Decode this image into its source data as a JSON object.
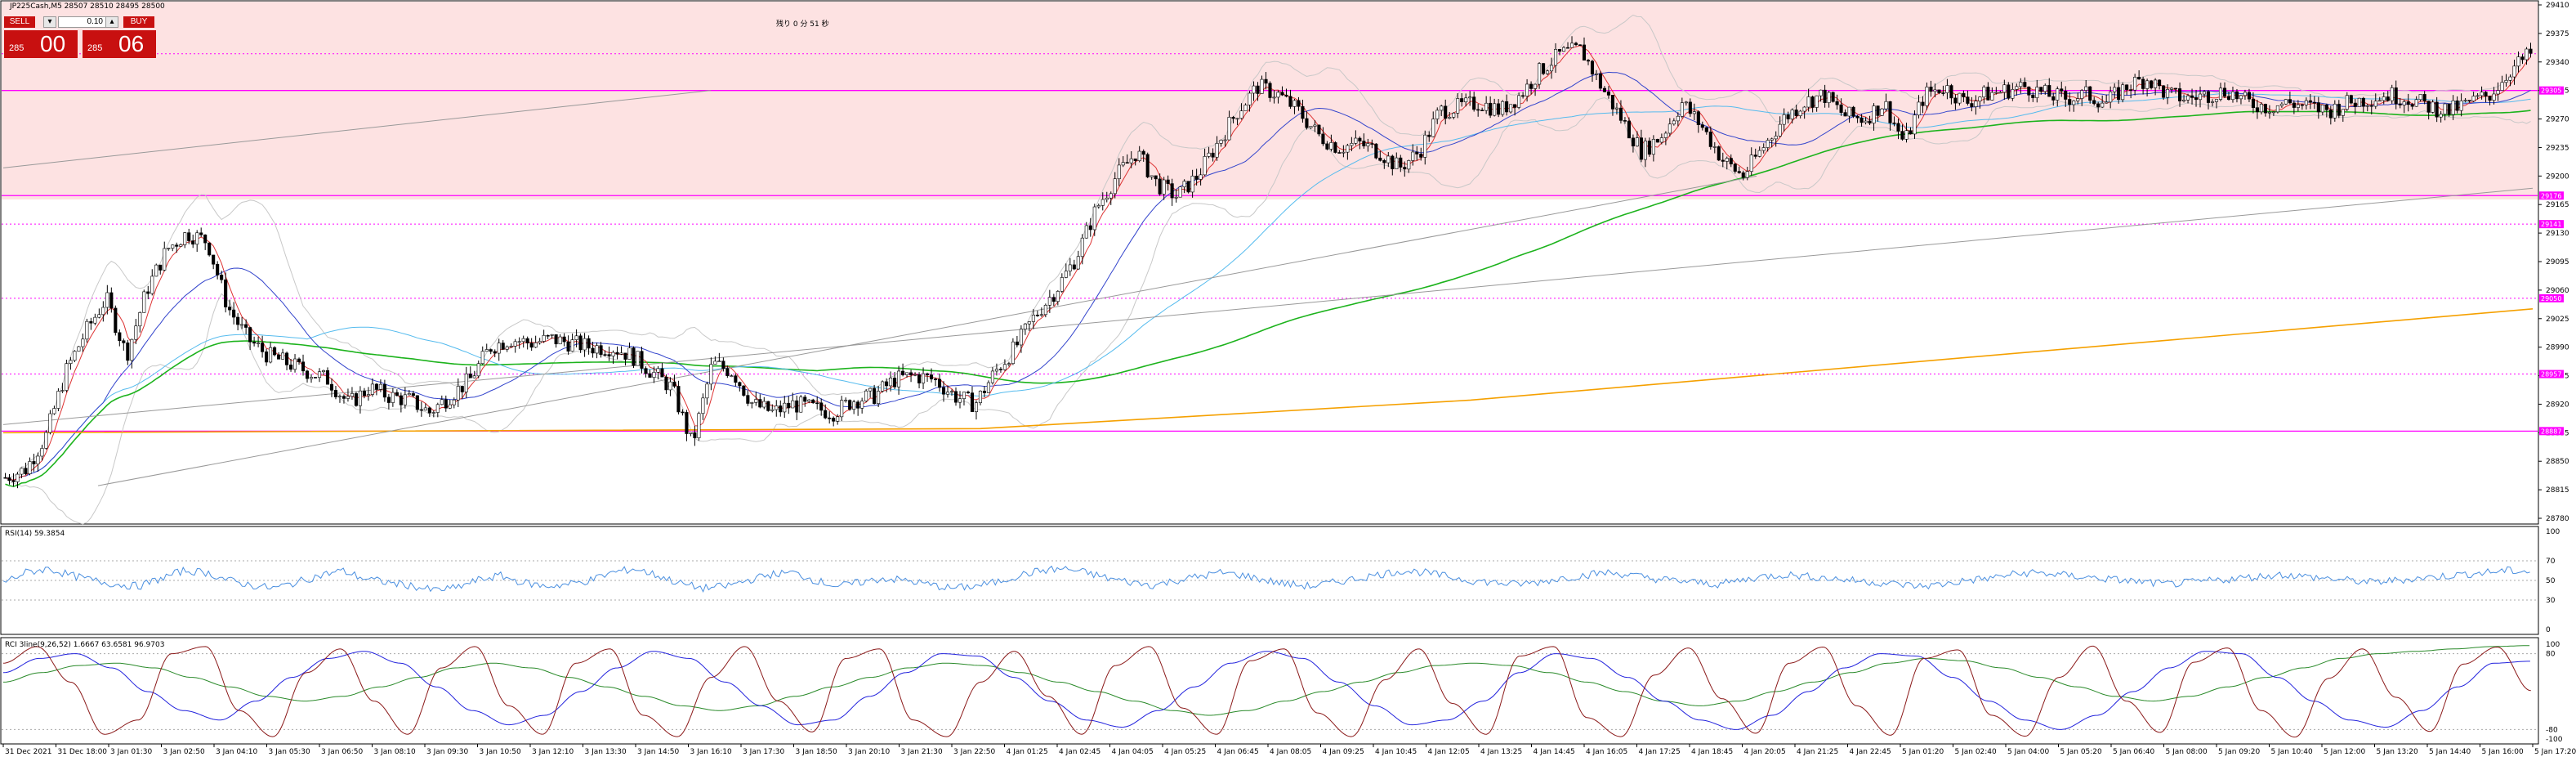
{
  "header": {
    "symbol_line": "JP225Cash,M5  28507 28510 28495 28500",
    "timer_text": "残り 0 分 51 秒"
  },
  "trade_panel": {
    "sell_label": "SELL",
    "buy_label": "BUY",
    "lot_value": "0.10",
    "sell_price_small": "285",
    "sell_price_big": "00",
    "buy_price_small": "285",
    "buy_price_big": "06"
  },
  "indicators": {
    "rsi_label": "RSI(14) 59.3854",
    "rci_label": "RCI 3line(9,26,52) 1.6667 63.6581 96.9703"
  },
  "colors": {
    "bg_upper_zone": "#fde2e2",
    "magenta_line": "#ff00ff",
    "orange_ma": "#f5a000",
    "green_ma": "#1db31d",
    "gray_trend": "#999999",
    "blue_ma": "#3344cc",
    "lightblue_ma": "#55bbee",
    "red_ma": "#dd3333",
    "rsi_line": "#4a8fe0",
    "rci_short": "#8b1a1a",
    "rci_mid": "#2222dd",
    "rci_long": "#2a8a2a",
    "price_tag": "#ff00ff"
  },
  "chart_data": [
    {
      "type": "candlestick",
      "title": "JP225Cash,M5",
      "ylim": [
        28780,
        29410
      ],
      "y_ticks": [
        "29410",
        "29375",
        "29340",
        "29305",
        "29270",
        "29235",
        "29200",
        "29165",
        "29130",
        "29095",
        "29060",
        "29025",
        "28990",
        "28955",
        "28920",
        "28885",
        "28850",
        "28815",
        "28780"
      ],
      "horizontal_levels": [
        {
          "value": 29305,
          "label": "29305",
          "style": "solid"
        },
        {
          "value": 29176,
          "label": "29176",
          "style": "solid"
        },
        {
          "value": 29141,
          "label": "29141",
          "style": "dotted"
        },
        {
          "value": 29050,
          "label": "29050",
          "style": "dotted"
        },
        {
          "value": 28957,
          "label": "28957",
          "style": "dotted"
        },
        {
          "value": 28887,
          "label": "28887",
          "style": "solid"
        },
        {
          "value": 29350,
          "label": "",
          "style": "dotted"
        }
      ],
      "x_tick_labels": [
        "31 Dec 2021",
        "31 Dec 18:00",
        "3 Jan 01:30",
        "3 Jan 02:50",
        "3 Jan 04:10",
        "3 Jan 05:30",
        "3 Jan 06:50",
        "3 Jan 08:10",
        "3 Jan 09:30",
        "3 Jan 10:50",
        "3 Jan 12:10",
        "3 Jan 13:30",
        "3 Jan 14:50",
        "3 Jan 16:10",
        "3 Jan 17:30",
        "3 Jan 18:50",
        "3 Jan 20:10",
        "3 Jan 21:30",
        "3 Jan 22:50",
        "4 Jan 01:25",
        "4 Jan 02:45",
        "4 Jan 04:05",
        "4 Jan 05:25",
        "4 Jan 06:45",
        "4 Jan 08:05",
        "4 Jan 09:25",
        "4 Jan 10:45",
        "4 Jan 12:05",
        "4 Jan 13:25",
        "4 Jan 14:45",
        "4 Jan 16:05",
        "4 Jan 17:25",
        "4 Jan 18:45",
        "4 Jan 20:05",
        "4 Jan 21:25",
        "4 Jan 22:45",
        "5 Jan 01:20",
        "5 Jan 02:40",
        "5 Jan 04:00",
        "5 Jan 05:20",
        "5 Jan 06:40",
        "5 Jan 08:00",
        "5 Jan 09:20",
        "5 Jan 10:40",
        "5 Jan 12:00",
        "5 Jan 13:20",
        "5 Jan 14:40",
        "5 Jan 16:00",
        "5 Jan 17:20"
      ],
      "close_path": [
        28830,
        28840,
        28880,
        28960,
        29010,
        29050,
        28980,
        29060,
        29110,
        29130,
        29120,
        29040,
        29000,
        28980,
        28970,
        28960,
        28950,
        28920,
        28940,
        28930,
        28925,
        28910,
        28930,
        28950,
        28990,
        29000,
        28995,
        29000,
        28995,
        28990,
        28990,
        28980,
        28960,
        28940,
        28870,
        28970,
        28960,
        28920,
        28910,
        28920,
        28915,
        28910,
        28925,
        28930,
        28950,
        28955,
        28950,
        28930,
        28920,
        28960,
        28990,
        29030,
        29060,
        29100,
        29160,
        29200,
        29230,
        29190,
        29175,
        29200,
        29240,
        29280,
        29310,
        29300,
        29280,
        29250,
        29235,
        29240,
        29230,
        29210,
        29230,
        29280,
        29285,
        29290,
        29280,
        29300,
        29330,
        29350,
        29355,
        29310,
        29270,
        29230,
        29250,
        29290,
        29260,
        29220,
        29200,
        29235,
        29270,
        29290,
        29300,
        29275,
        29270,
        29290,
        29240,
        29300,
        29310,
        29290,
        29300,
        29305,
        29310,
        29300,
        29295,
        29300,
        29290,
        29310,
        29320,
        29300,
        29295,
        29300,
        29305,
        29290,
        29285,
        29290,
        29285,
        29280,
        29290,
        29295,
        29300,
        29295,
        29285,
        29280,
        29290,
        29300,
        29330,
        29350
      ],
      "overlay_lines": [
        "orange long MA",
        "green MA",
        "gray trendline 1",
        "gray trendline 2",
        "blue MA",
        "light blue MA",
        "red fast MA",
        "bollinger bands"
      ]
    },
    {
      "type": "line",
      "title": "RSI(14) 59.3854",
      "ylim": [
        0,
        100
      ],
      "y_ticks": [
        "100",
        "70",
        "50",
        "30",
        "0"
      ],
      "series": [
        {
          "name": "RSI(14)",
          "values": [
            48,
            58,
            62,
            55,
            50,
            46,
            44,
            52,
            60,
            58,
            50,
            45,
            42,
            48,
            55,
            60,
            52,
            48,
            45,
            40,
            42,
            50,
            55,
            48,
            44,
            46,
            50,
            58,
            62,
            55,
            47,
            42,
            44,
            50,
            56,
            58,
            50,
            44,
            48,
            52,
            50,
            46,
            42,
            44,
            48,
            55,
            60,
            62,
            58,
            52,
            48,
            45,
            50,
            54,
            58,
            55,
            50,
            46,
            44,
            48,
            52,
            56,
            60,
            58,
            54,
            50,
            48,
            46,
            48,
            52,
            55,
            58,
            56,
            52,
            50,
            48,
            46,
            50,
            54,
            56,
            54,
            52,
            50,
            48,
            46,
            44,
            46,
            50,
            52,
            56,
            58,
            56,
            54,
            52,
            50,
            48,
            46,
            48,
            50,
            52,
            54,
            56,
            54,
            52,
            50,
            48,
            50,
            52,
            54,
            56,
            58,
            60,
            59
          ]
        }
      ]
    },
    {
      "type": "line",
      "title": "RCI 3line(9,26,52) 1.6667 63.6581 96.9703",
      "ylim": [
        -100,
        100
      ],
      "y_ticks": [
        "100",
        "80",
        "-80",
        "-100"
      ],
      "series": [
        {
          "name": "RCI(9)",
          "values": [
            60,
            95,
            20,
            -90,
            -60,
            80,
            95,
            -40,
            -95,
            40,
            90,
            -20,
            -90,
            50,
            95,
            -30,
            -90,
            60,
            90,
            -50,
            -95,
            30,
            95,
            -20,
            -85,
            70,
            90,
            -60,
            -95,
            20,
            85,
            -10,
            -90,
            55,
            95,
            -35,
            -90,
            65,
            90,
            -45,
            -95,
            25,
            90,
            -25,
            -90,
            75,
            95,
            -55,
            -95,
            35,
            92,
            -15,
            -88,
            60,
            94,
            -30,
            -92,
            70,
            88,
            -50,
            -94,
            30,
            96,
            -20,
            -86,
            62,
            92,
            -40,
            -96,
            28,
            90,
            -12,
            -84,
            58,
            94,
            2
          ]
        },
        {
          "name": "RCI(26)",
          "values": [
            40,
            70,
            80,
            50,
            0,
            -40,
            -60,
            -20,
            30,
            70,
            85,
            60,
            10,
            -40,
            -70,
            -50,
            0,
            50,
            85,
            70,
            20,
            -30,
            -70,
            -60,
            -10,
            40,
            80,
            75,
            30,
            -20,
            -60,
            -75,
            -40,
            10,
            60,
            85,
            70,
            20,
            -30,
            -70,
            -60,
            -20,
            40,
            80,
            70,
            30,
            -20,
            -60,
            -80,
            -50,
            0,
            50,
            80,
            75,
            30,
            -20,
            -60,
            -80,
            -50,
            0,
            50,
            85,
            80,
            30,
            -20,
            -60,
            -75,
            -40,
            10,
            60,
            64
          ]
        },
        {
          "name": "RCI(52)",
          "values": [
            20,
            40,
            55,
            60,
            50,
            30,
            10,
            -10,
            -20,
            -10,
            10,
            30,
            50,
            60,
            50,
            30,
            10,
            -10,
            -30,
            -40,
            -30,
            -10,
            10,
            30,
            50,
            60,
            55,
            40,
            20,
            0,
            -20,
            -40,
            -50,
            -40,
            -20,
            0,
            20,
            40,
            55,
            60,
            55,
            40,
            20,
            0,
            -20,
            -30,
            -20,
            0,
            20,
            40,
            60,
            70,
            65,
            50,
            30,
            10,
            -10,
            -20,
            -10,
            10,
            30,
            50,
            70,
            80,
            85,
            90,
            95,
            97
          ]
        }
      ]
    }
  ]
}
